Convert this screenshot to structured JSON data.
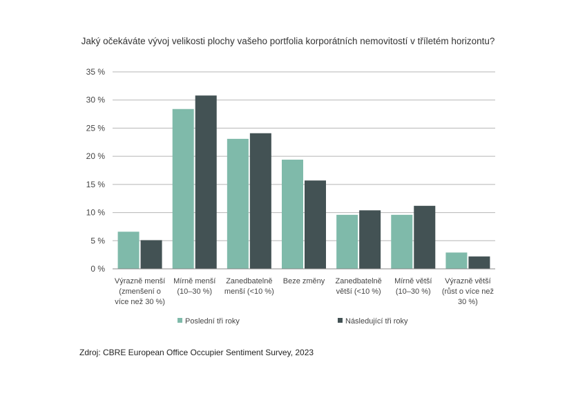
{
  "chart_data": {
    "type": "bar",
    "title": "Jaký očekáváte vývoj velikosti plochy vašeho portfolia korporátních nemovitostí v tříletém horizontu?",
    "categories": [
      [
        "Výrazně menší",
        "(zmenšení o",
        "více než 30 %)"
      ],
      [
        "Mírně menší",
        "(10–30 %)"
      ],
      [
        "Zanedbatelně",
        "menší (<10 %)"
      ],
      [
        "Beze změny"
      ],
      [
        "Zanedbatelně",
        "větší (<10 %)"
      ],
      [
        "Mírně větší",
        "(10–30 %)"
      ],
      [
        "Výrazně větší",
        "(růst o více než",
        "30 %)"
      ]
    ],
    "series": [
      {
        "name": "Poslední tři roky",
        "color": "#7fbaaa",
        "values": [
          6.6,
          28.4,
          23.1,
          19.4,
          9.6,
          9.6,
          2.9
        ]
      },
      {
        "name": "Následující tři roky",
        "color": "#435254",
        "values": [
          5.1,
          30.8,
          24.1,
          15.7,
          10.4,
          11.2,
          2.2
        ]
      }
    ],
    "yticks": [
      "0 %",
      "5 %",
      "10 %",
      "15 %",
      "20 %",
      "25 %",
      "30 %",
      "35 %"
    ],
    "ylim": [
      0,
      35
    ],
    "grid": true,
    "legend_position": "bottom"
  },
  "source": "Zdroj: CBRE European Office Occupier Sentiment Survey, 2023"
}
